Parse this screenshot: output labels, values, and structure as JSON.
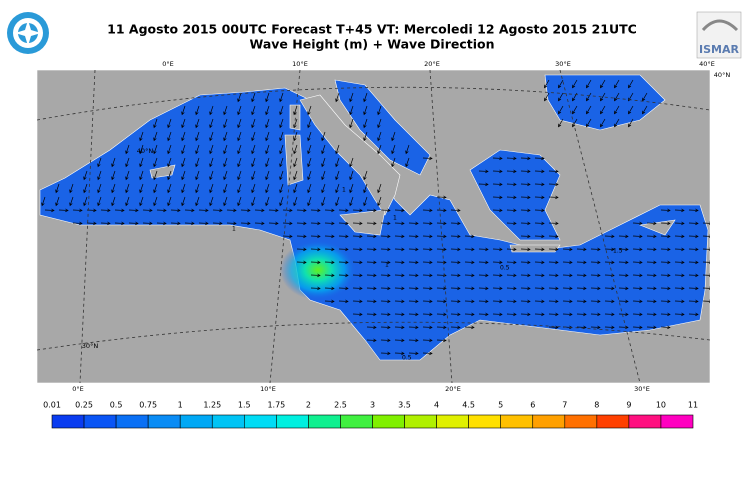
{
  "header": {
    "title_line1": "11 Agosto 2015 00UTC Forecast T+45 VT: Mercoledi 12 Agosto 2015 21UTC",
    "title_line2": "Wave Height (m) + Wave Direction",
    "logo_text": "ISMAR"
  },
  "map": {
    "top_lon_labels": [
      "0°E",
      "10°E",
      "20°E",
      "30°E",
      "40°E"
    ],
    "bottom_lon_labels": [
      "0°E",
      "10°E",
      "20°E",
      "30°E"
    ],
    "left_lat_labels": [
      "40°N",
      "30°N"
    ],
    "right_lat_labels": [
      "40°N"
    ],
    "contour_labels": [
      "1",
      "1",
      "1",
      "1",
      "1.5",
      "0.5",
      "0.5"
    ]
  },
  "colorbar": {
    "labels": [
      "0.01",
      "0.25",
      "0.5",
      "0.75",
      "1",
      "1.25",
      "1.5",
      "1.75",
      "2",
      "2.5",
      "3",
      "3.5",
      "4",
      "4.5",
      "5",
      "6",
      "7",
      "8",
      "9",
      "10",
      "11"
    ],
    "colors": [
      "#0a3cf0",
      "#0a55f5",
      "#0a70f5",
      "#0a8cf5",
      "#00a8f5",
      "#00c4f5",
      "#00dcf5",
      "#00f0e0",
      "#10f090",
      "#40f040",
      "#80f000",
      "#b0f000",
      "#e0f000",
      "#ffe000",
      "#ffc000",
      "#ffa000",
      "#ff7000",
      "#ff4000",
      "#ff1080",
      "#ff00c0"
    ]
  }
}
